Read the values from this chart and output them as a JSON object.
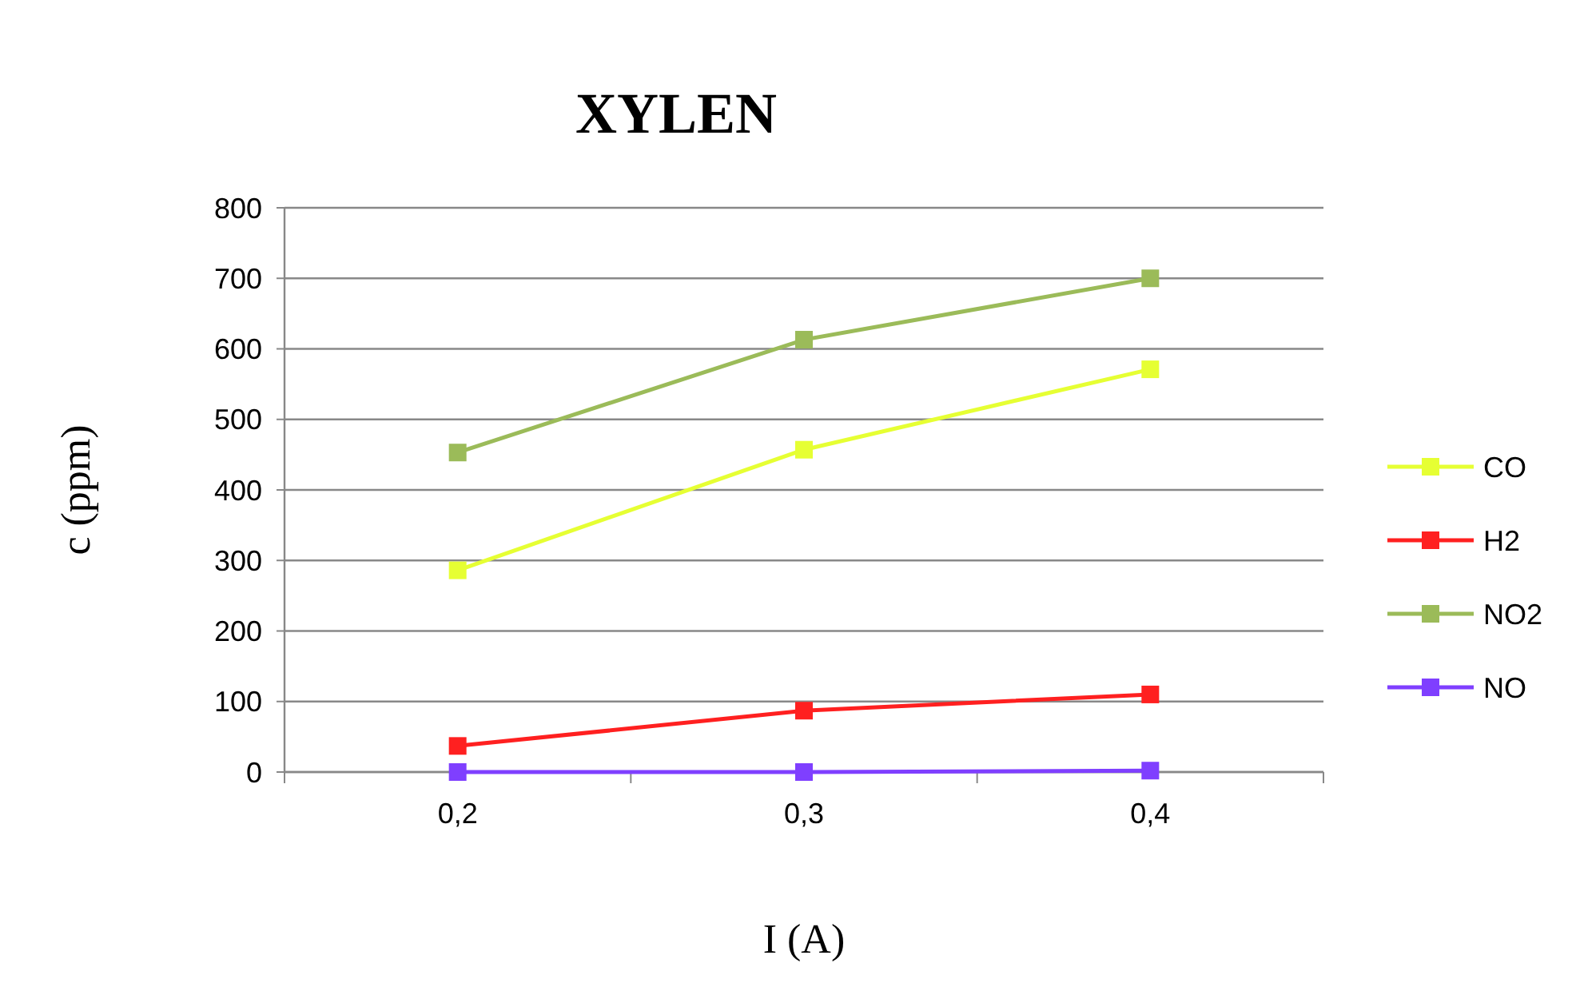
{
  "chart_data": {
    "type": "line",
    "title": "XYLEN",
    "xlabel": "I (A)",
    "ylabel": "c (ppm)",
    "categories": [
      "0,2",
      "0,3",
      "0,4"
    ],
    "series": [
      {
        "name": "CO",
        "color": "#e6ff33",
        "values": [
          286,
          457,
          571
        ]
      },
      {
        "name": "H2",
        "color": "#ff2020",
        "values": [
          37,
          87,
          110
        ]
      },
      {
        "name": "NO2",
        "color": "#9bbb59",
        "values": [
          453,
          613,
          700
        ]
      },
      {
        "name": "NO",
        "color": "#7f3fff",
        "values": [
          0,
          0,
          2
        ]
      }
    ],
    "ylim": [
      0,
      800
    ],
    "yticks": [
      0,
      100,
      200,
      300,
      400,
      500,
      600,
      700,
      800
    ],
    "grid": "y",
    "legend": "right",
    "marker": "square",
    "line_style": "solid"
  }
}
